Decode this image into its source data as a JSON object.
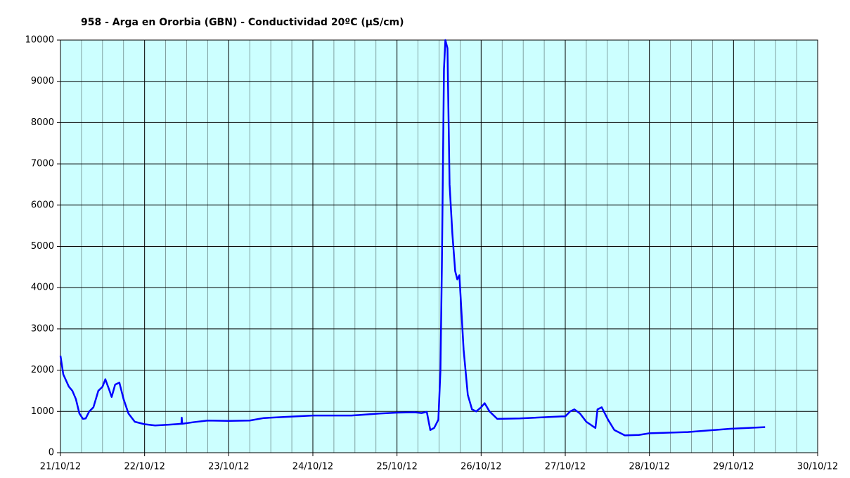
{
  "chart_data": {
    "type": "line",
    "title": "958 - Arga en Ororbia (GBN) - Conductividad 20ºC (µS/cm)",
    "xlim": [
      "21/10/12",
      "30/10/12"
    ],
    "xticks": [
      "21/10/12",
      "22/10/12",
      "23/10/12",
      "24/10/12",
      "25/10/12",
      "26/10/12",
      "27/10/12",
      "28/10/12",
      "29/10/12",
      "30/10/12"
    ],
    "ylim": [
      0,
      10000
    ],
    "yticks": [
      0,
      1000,
      2000,
      3000,
      4000,
      5000,
      6000,
      7000,
      8000,
      9000,
      10000
    ],
    "grid": true,
    "background": "#ccffff",
    "x": [
      "21/10/12 00:00",
      "21/10/12 00:48",
      "21/10/12 02:24",
      "21/10/12 03:24",
      "21/10/12 04:24",
      "21/10/12 05:24",
      "21/10/12 06:24",
      "21/10/12 07:12",
      "21/10/12 08:12",
      "21/10/12 09:24",
      "21/10/12 10:48",
      "21/10/12 12:00",
      "21/10/12 12:48",
      "21/10/12 13:48",
      "21/10/12 14:36",
      "21/10/12 15:36",
      "21/10/12 16:48",
      "21/10/12 18:00",
      "21/10/12 19:24",
      "21/10/12 21:12",
      "22/10/12 00:00",
      "22/10/12 03:00",
      "22/10/12 07:00",
      "22/10/12 10:30",
      "22/10/12 10:36",
      "22/10/12 10:42",
      "22/10/12 14:00",
      "22/10/12 18:00",
      "23/10/12 00:00",
      "23/10/12 06:00",
      "23/10/12 10:00",
      "23/10/12 19:00",
      "24/10/12 00:00",
      "24/10/12 11:00",
      "24/10/12 19:00",
      "25/10/12 00:00",
      "25/10/12 05:00",
      "25/10/12 07:00",
      "25/10/12 08:30",
      "25/10/12 09:30",
      "25/10/12 10:36",
      "25/10/12 11:48",
      "25/10/12 12:24",
      "25/10/12 12:48",
      "25/10/12 13:24",
      "25/10/12 13:48",
      "25/10/12 14:24",
      "25/10/12 15:00",
      "25/10/12 15:48",
      "25/10/12 16:36",
      "25/10/12 17:12",
      "25/10/12 17:48",
      "25/10/12 19:00",
      "25/10/12 20:12",
      "25/10/12 21:24",
      "25/10/12 22:36",
      "26/10/12 00:00",
      "26/10/12 01:00",
      "26/10/12 02:24",
      "26/10/12 04:36",
      "26/10/12 11:00",
      "26/10/12 23:00",
      "27/10/12 00:00",
      "27/10/12 01:24",
      "27/10/12 02:36",
      "27/10/12 04:12",
      "27/10/12 06:00",
      "27/10/12 08:36",
      "27/10/12 09:12",
      "27/10/12 10:24",
      "27/10/12 12:12",
      "27/10/12 14:00",
      "27/10/12 17:00",
      "27/10/12 21:00",
      "28/10/12 00:00",
      "28/10/12 11:00",
      "28/10/12 23:00",
      "29/10/12 09:00"
    ],
    "series": [
      {
        "color": "#0000ff",
        "values": [
          2350,
          1900,
          1600,
          1500,
          1300,
          950,
          820,
          830,
          1000,
          1100,
          1500,
          1600,
          1780,
          1550,
          1350,
          1650,
          1700,
          1300,
          950,
          750,
          690,
          660,
          680,
          700,
          850,
          700,
          740,
          780,
          770,
          780,
          840,
          880,
          900,
          900,
          950,
          970,
          980,
          960,
          990,
          550,
          600,
          800,
          2000,
          4500,
          9300,
          10000,
          9800,
          6500,
          5300,
          4400,
          4200,
          4300,
          2500,
          1400,
          1050,
          1000,
          1100,
          1200,
          1000,
          820,
          830,
          880,
          880,
          1000,
          1050,
          950,
          750,
          600,
          1050,
          1100,
          800,
          550,
          420,
          430,
          470,
          500,
          580,
          620
        ]
      }
    ]
  }
}
